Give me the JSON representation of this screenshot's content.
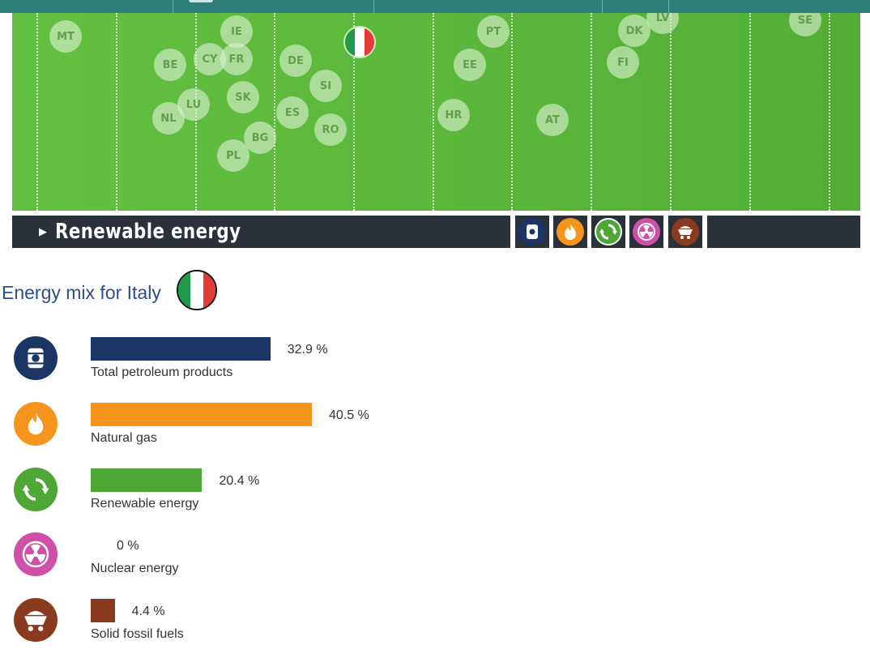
{
  "selector": {
    "title": "Renewable energy"
  },
  "mix": {
    "title": "Energy mix for Italy"
  },
  "colors": {
    "petroleum": "#1b3566",
    "gas": "#f5951e",
    "renewable": "#4ea635",
    "nuclear": "#d04fa8",
    "solid": "#8a3a1e"
  },
  "field_tokens": [
    "MT",
    "IE",
    "BE",
    "CY",
    "FR",
    "DE",
    "SI",
    "LU",
    "SK",
    "NL",
    "ES",
    "BG",
    "RO",
    "PL",
    "PT",
    "EE",
    "HR",
    "AT",
    "DK",
    "LV",
    "FI",
    "SE"
  ],
  "chart_data": {
    "type": "bar",
    "title": "Energy mix for Italy",
    "categories": [
      "Total petroleum products",
      "Natural gas",
      "Renewable energy",
      "Nuclear energy",
      "Solid fossil fuels"
    ],
    "values": [
      32.9,
      40.5,
      20.4,
      0,
      4.4
    ],
    "value_labels": [
      "32.9 %",
      "40.5 %",
      "20.4 %",
      "0 %",
      "4.4 %"
    ],
    "icons": [
      "oil-barrel-icon",
      "flame-icon",
      "recycle-icon",
      "radiation-icon",
      "coal-cart-icon"
    ],
    "unit": "%",
    "xlim": [
      0,
      100
    ]
  }
}
